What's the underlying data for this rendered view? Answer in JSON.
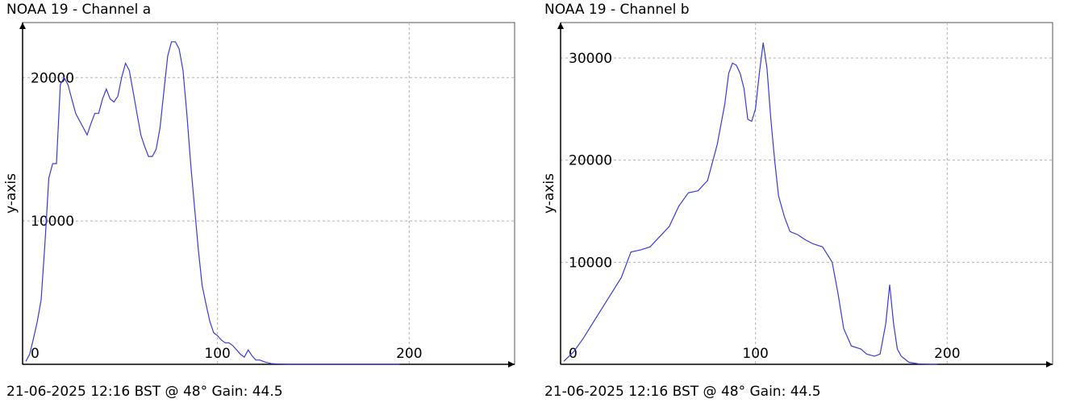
{
  "colors": {
    "line": "#3a3ad6",
    "grid": "#b0b0b0",
    "axis": "#000000"
  },
  "chart_data": [
    {
      "type": "line",
      "title": "NOAA 19 - Channel a",
      "xlabel": "",
      "ylabel": "y-axis",
      "footer": "21-06-2025 12:16 BST @ 48° Gain: 44.5",
      "xlim": [
        0,
        255
      ],
      "ylim": [
        0,
        23500
      ],
      "xticks": [
        0,
        100,
        200
      ],
      "yticks": [
        10000,
        20000
      ],
      "grid": true,
      "series": [
        {
          "x": [
            0,
            2,
            4,
            6,
            8,
            10,
            12,
            14,
            16,
            18,
            20,
            22,
            24,
            26,
            28,
            30,
            32,
            34,
            36,
            38,
            40,
            42,
            44,
            46,
            48,
            50,
            52,
            54,
            56,
            58,
            60,
            62,
            64,
            66,
            68,
            70,
            72,
            74,
            76,
            78,
            80,
            82,
            84,
            86,
            88,
            90,
            92,
            94,
            96,
            98,
            100,
            102,
            104,
            106,
            108,
            110,
            112,
            114,
            116,
            118,
            120,
            122,
            125,
            128,
            131,
            134,
            137,
            140,
            145,
            150,
            155,
            160,
            165,
            170,
            175,
            180,
            185,
            190,
            195
          ],
          "y": [
            200,
            700,
            1800,
            3000,
            4500,
            8500,
            13000,
            14000,
            14000,
            19500,
            20000,
            19500,
            18500,
            17500,
            17000,
            16500,
            16000,
            16800,
            17500,
            17500,
            18500,
            19200,
            18500,
            18300,
            18700,
            20000,
            21000,
            20500,
            19000,
            17500,
            16000,
            15200,
            14500,
            14500,
            15000,
            16500,
            19000,
            21500,
            22500,
            22500,
            22000,
            20500,
            17500,
            14000,
            11000,
            8000,
            5500,
            4200,
            3000,
            2200,
            2000,
            1700,
            1500,
            1500,
            1300,
            1000,
            700,
            500,
            1000,
            600,
            300,
            300,
            150,
            50,
            30,
            15,
            5,
            0,
            0,
            0,
            0,
            0,
            0,
            0,
            0,
            0,
            0,
            0,
            0
          ]
        }
      ]
    },
    {
      "type": "line",
      "title": "NOAA 19 - Channel b",
      "xlabel": "",
      "ylabel": "y-axis",
      "footer": "21-06-2025 12:16 BST @ 48° Gain: 44.5",
      "xlim": [
        0,
        255
      ],
      "ylim": [
        0,
        33000
      ],
      "xticks": [
        0,
        100,
        200
      ],
      "yticks": [
        10000,
        20000,
        30000
      ],
      "grid": true,
      "series": [
        {
          "x": [
            0,
            5,
            10,
            15,
            20,
            25,
            30,
            35,
            40,
            45,
            50,
            55,
            60,
            65,
            70,
            75,
            80,
            84,
            86,
            88,
            90,
            92,
            94,
            96,
            98,
            100,
            102,
            104,
            106,
            108,
            110,
            112,
            115,
            118,
            122,
            126,
            130,
            135,
            140,
            143,
            146,
            150,
            155,
            158,
            162,
            165,
            168,
            170,
            172,
            174,
            176,
            180,
            185,
            190,
            195
          ],
          "y": [
            300,
            1200,
            2500,
            4000,
            5500,
            7000,
            8500,
            11000,
            11200,
            11500,
            12500,
            13500,
            15500,
            16800,
            17000,
            18000,
            21500,
            25500,
            28500,
            29500,
            29300,
            28500,
            27000,
            24000,
            23800,
            25000,
            28500,
            31500,
            29000,
            24000,
            20000,
            16500,
            14500,
            13000,
            12700,
            12200,
            11800,
            11500,
            10000,
            7000,
            3500,
            1800,
            1500,
            1000,
            800,
            1000,
            4000,
            7800,
            4000,
            1500,
            800,
            200,
            50,
            10,
            0
          ]
        }
      ]
    }
  ]
}
